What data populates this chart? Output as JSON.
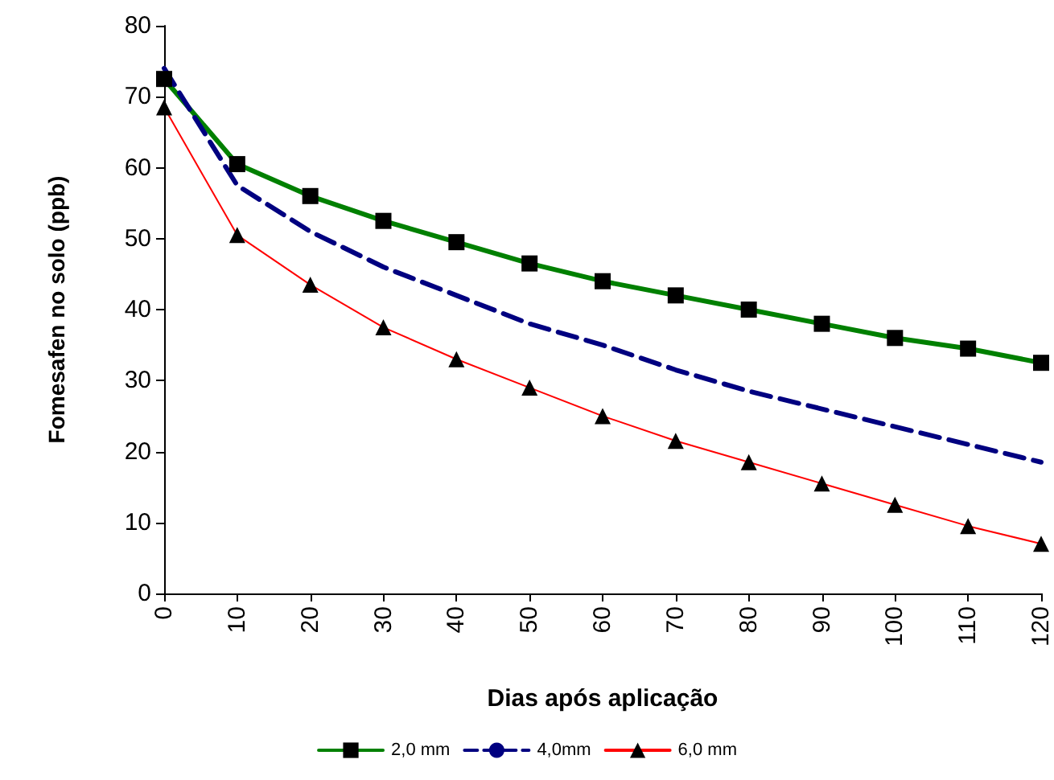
{
  "chart_data": {
    "type": "line",
    "xlabel": "Dias após aplicação",
    "ylabel": "Fomesafen no solo (ppb)",
    "x": [
      0,
      10,
      20,
      30,
      40,
      50,
      60,
      70,
      80,
      90,
      100,
      110,
      120
    ],
    "series": [
      {
        "name": "2,0 mm",
        "color": "#008000",
        "marker": "square",
        "line_style": "solid",
        "values": [
          72.5,
          60.5,
          56,
          52.5,
          49.5,
          46.5,
          44,
          42,
          40,
          38,
          36,
          34.5,
          32.5
        ]
      },
      {
        "name": "4,0mm",
        "color": "#000080",
        "marker": "none",
        "line_style": "dashed",
        "values": [
          74,
          57.5,
          51,
          46,
          42,
          38,
          35,
          31.5,
          28.5,
          26,
          23.5,
          21,
          18.5
        ]
      },
      {
        "name": "6,0 mm",
        "color": "#ff0000",
        "marker": "triangle",
        "line_style": "solid",
        "values": [
          68.5,
          50.5,
          43.5,
          37.5,
          33,
          29,
          25,
          21.5,
          18.5,
          15.5,
          12.5,
          9.5,
          7
        ]
      }
    ],
    "xlim": [
      0,
      120
    ],
    "xticks": [
      0,
      10,
      20,
      30,
      40,
      50,
      60,
      70,
      80,
      90,
      100,
      110,
      120
    ],
    "ylim": [
      0,
      80
    ],
    "yticks": [
      0,
      10,
      20,
      30,
      40,
      50,
      60,
      70,
      80
    ],
    "grid": false,
    "legend": "bottom"
  }
}
